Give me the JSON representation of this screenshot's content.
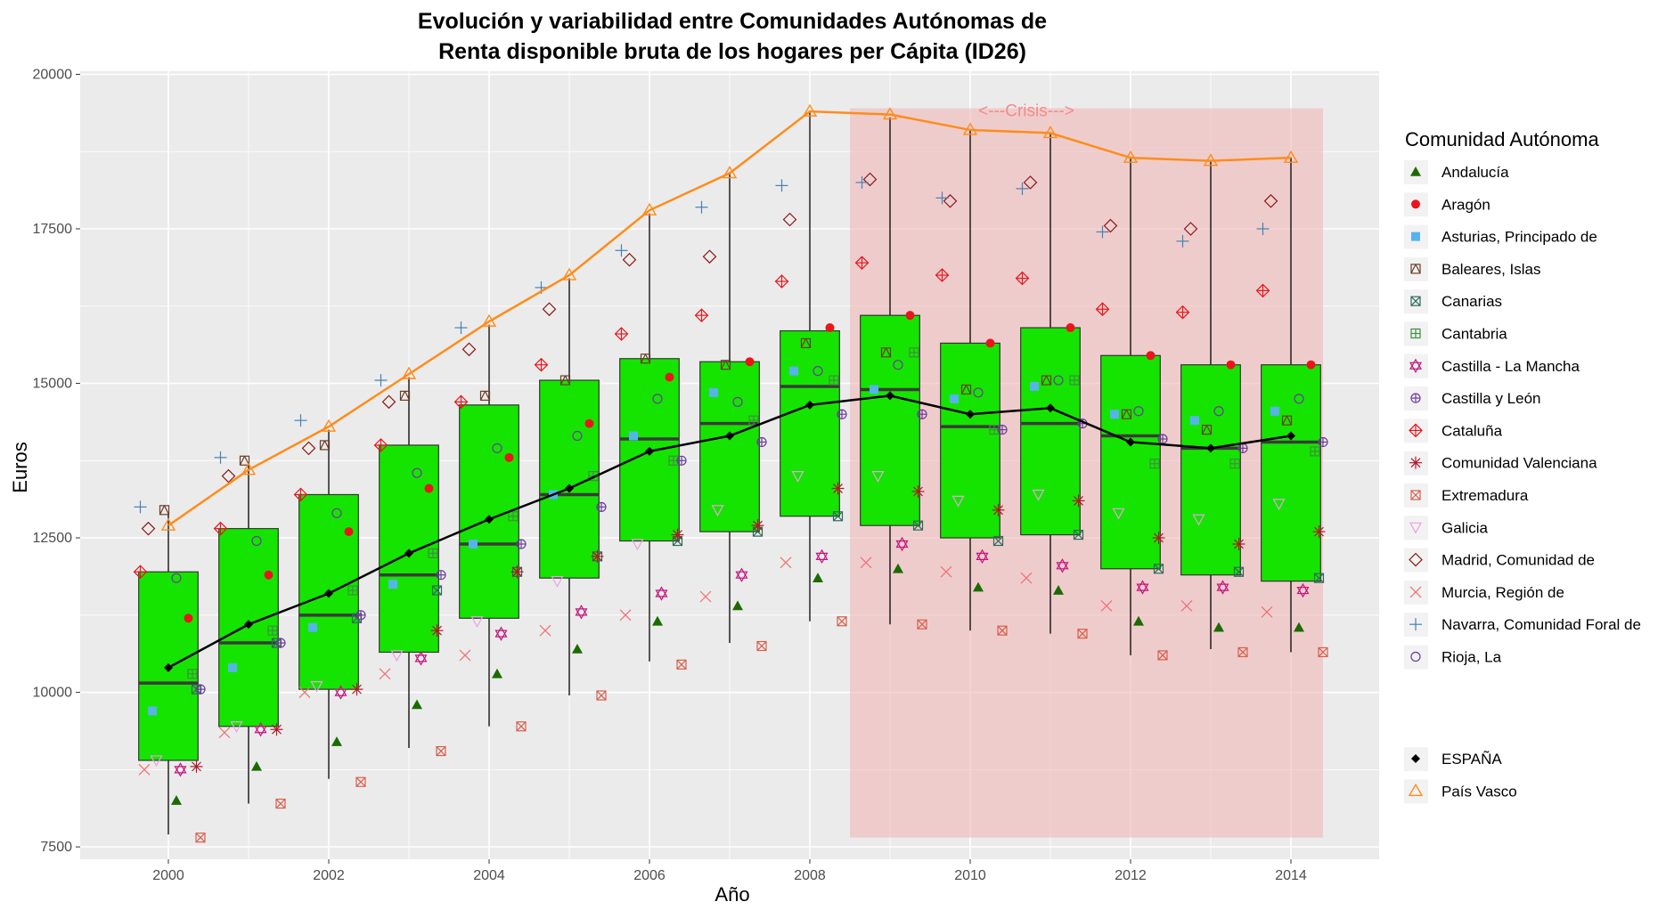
{
  "chart_data": {
    "type": "box",
    "title_line1": "Evolución y variabilidad entre Comunidades Autónomas de",
    "title_line2": "Renta disponible bruta de los hogares per Cápita (ID26)",
    "xlabel": "Año",
    "ylabel": "Euros",
    "xlim": [
      1998.9,
      2015.1
    ],
    "ylim": [
      7300,
      20050
    ],
    "x_ticks": [
      2000,
      2002,
      2004,
      2006,
      2008,
      2010,
      2012,
      2014
    ],
    "y_ticks": [
      7500,
      10000,
      12500,
      15000,
      17500,
      20000
    ],
    "y_tick_labels": [
      "7500",
      "10000",
      "12500",
      "15000",
      "17500",
      "20000"
    ],
    "x_tick_labels": [
      "2000",
      "2002",
      "2004",
      "2006",
      "2008",
      "2010",
      "2012",
      "2014"
    ],
    "grid": true,
    "panel_background": "#ebebeb",
    "crisis": {
      "label": "<---Crisis--->",
      "x_from": 2008.5,
      "x_to": 2014.4,
      "y_from": 7650,
      "y_to": 19450,
      "color": "#f2b8b8"
    },
    "box_color": "#15e400",
    "boxes": [
      {
        "year": 2000,
        "min": 7700,
        "q1": 8900,
        "median": 10150,
        "q3": 11950,
        "max": 12900
      },
      {
        "year": 2001,
        "min": 8200,
        "q1": 9450,
        "median": 10800,
        "q3": 12650,
        "max": 13700
      },
      {
        "year": 2002,
        "min": 8600,
        "q1": 10050,
        "median": 11250,
        "q3": 13200,
        "max": 14250
      },
      {
        "year": 2003,
        "min": 9100,
        "q1": 10650,
        "median": 11900,
        "q3": 14000,
        "max": 15100
      },
      {
        "year": 2004,
        "min": 9450,
        "q1": 11200,
        "median": 12400,
        "q3": 14650,
        "max": 15950
      },
      {
        "year": 2005,
        "min": 9950,
        "q1": 11850,
        "median": 13200,
        "q3": 15050,
        "max": 16700
      },
      {
        "year": 2006,
        "min": 10500,
        "q1": 12450,
        "median": 14100,
        "q3": 15400,
        "max": 17750
      },
      {
        "year": 2007,
        "min": 10800,
        "q1": 12600,
        "median": 14350,
        "q3": 15350,
        "max": 18400
      },
      {
        "year": 2008,
        "min": 11150,
        "q1": 12850,
        "median": 14950,
        "q3": 15850,
        "max": 19400
      },
      {
        "year": 2009,
        "min": 11100,
        "q1": 12700,
        "median": 14900,
        "q3": 16100,
        "max": 19300
      },
      {
        "year": 2010,
        "min": 11000,
        "q1": 12500,
        "median": 14300,
        "q3": 15650,
        "max": 19100
      },
      {
        "year": 2011,
        "min": 10950,
        "q1": 12550,
        "median": 14350,
        "q3": 15900,
        "max": 19050
      },
      {
        "year": 2012,
        "min": 10600,
        "q1": 12000,
        "median": 14150,
        "q3": 15450,
        "max": 18650
      },
      {
        "year": 2013,
        "min": 10700,
        "q1": 11900,
        "median": 13950,
        "q3": 15300,
        "max": 18600
      },
      {
        "year": 2014,
        "min": 10650,
        "q1": 11800,
        "median": 14050,
        "q3": 15300,
        "max": 18650
      }
    ],
    "legend_title": "Comunidad Autónoma",
    "series": [
      {
        "name": "Andalucía",
        "shape": "triangle-filled",
        "color": "#1b6b00",
        "offset": 0.1,
        "values": [
          8250,
          8800,
          9200,
          9800,
          10300,
          10700,
          11150,
          11400,
          11850,
          12000,
          11700,
          11650,
          11150,
          11050,
          11050
        ]
      },
      {
        "name": "Aragón",
        "shape": "circle-filled",
        "color": "#e8161b",
        "offset": 0.25,
        "values": [
          11200,
          11900,
          12600,
          13300,
          13800,
          14350,
          15100,
          15350,
          15900,
          16100,
          15650,
          15900,
          15450,
          15300,
          15300
        ]
      },
      {
        "name": "Asturias, Principado de",
        "shape": "square-filled",
        "color": "#56b4e9",
        "offset": -0.2,
        "values": [
          9700,
          10400,
          11050,
          11750,
          12400,
          13200,
          14150,
          14850,
          15200,
          14900,
          14750,
          14950,
          14500,
          14400,
          14550
        ]
      },
      {
        "name": "Baleares, Islas",
        "shape": "square-cross",
        "color": "#6b3e26",
        "offset": -0.05,
        "values": [
          12950,
          13750,
          14000,
          14800,
          14800,
          15050,
          15400,
          15300,
          15650,
          15500,
          14900,
          15050,
          14500,
          14250,
          14400
        ]
      },
      {
        "name": "Canarias",
        "shape": "x-in-square",
        "color": "#2f6b5b",
        "offset": 0.35,
        "values": [
          10050,
          10800,
          11200,
          11650,
          11950,
          12200,
          12450,
          12600,
          12850,
          12700,
          12450,
          12550,
          12000,
          11950,
          11850
        ]
      },
      {
        "name": "Cantabria",
        "shape": "plus-in-square",
        "color": "#3f8f3f",
        "offset": 0.3,
        "values": [
          10300,
          11000,
          11650,
          12250,
          12850,
          13500,
          13750,
          14400,
          15050,
          15500,
          14250,
          15050,
          13700,
          13700,
          13900
        ]
      },
      {
        "name": "Castilla - La Mancha",
        "shape": "star-david",
        "color": "#c2147e",
        "offset": 0.15,
        "values": [
          8750,
          9400,
          10000,
          10550,
          10950,
          11300,
          11600,
          11900,
          12200,
          12400,
          12200,
          12050,
          11700,
          11700,
          11650
        ]
      },
      {
        "name": "Castilla y León",
        "shape": "plus-in-circle",
        "color": "#6a3d9a",
        "offset": 0.4,
        "values": [
          10050,
          10800,
          11250,
          11900,
          12400,
          13000,
          13750,
          14050,
          14500,
          14500,
          14250,
          14350,
          14100,
          13950,
          14050
        ]
      },
      {
        "name": "Cataluña",
        "shape": "plus-in-diamond",
        "color": "#e8161b",
        "offset": -0.35,
        "values": [
          11950,
          12650,
          13200,
          14000,
          14700,
          15300,
          15800,
          16100,
          16650,
          16950,
          16750,
          16700,
          16200,
          16150,
          16500
        ]
      },
      {
        "name": "Comunidad Valenciana",
        "shape": "asterisk",
        "color": "#b2182b",
        "offset": 0.35,
        "values": [
          8800,
          9400,
          10050,
          11000,
          11950,
          12200,
          12550,
          12700,
          13300,
          13250,
          12950,
          13100,
          12500,
          12400,
          12600
        ]
      },
      {
        "name": "Extremadura",
        "shape": "x-in-square",
        "color": "#d6604d",
        "offset": 0.4,
        "values": [
          7650,
          8200,
          8550,
          9050,
          9450,
          9950,
          10450,
          10750,
          11150,
          11100,
          11000,
          10950,
          10600,
          10650,
          10650
        ]
      },
      {
        "name": "Galicia",
        "shape": "triangle-down",
        "color": "#e7a2e0",
        "offset": -0.15,
        "values": [
          8900,
          9450,
          10100,
          10600,
          11150,
          11800,
          12400,
          12950,
          13500,
          13500,
          13100,
          13200,
          12900,
          12800,
          13050
        ]
      },
      {
        "name": "Madrid, Comunidad de",
        "shape": "diamond-open",
        "color": "#8b1a1a",
        "offset": -0.25,
        "values": [
          12650,
          13500,
          13950,
          14700,
          15550,
          16200,
          17000,
          17050,
          17650,
          18300,
          17950,
          18250,
          17550,
          17500,
          17950
        ]
      },
      {
        "name": "Murcia, Región de",
        "shape": "x",
        "color": "#f07070",
        "offset": -0.3,
        "values": [
          8750,
          9350,
          10000,
          10300,
          10600,
          11000,
          11250,
          11550,
          12100,
          12100,
          11950,
          11850,
          11400,
          11400,
          11300
        ]
      },
      {
        "name": "Navarra, Comunidad Foral de",
        "shape": "plus",
        "color": "#4682b4",
        "offset": -0.35,
        "values": [
          13000,
          13800,
          14400,
          15050,
          15900,
          16550,
          17150,
          17850,
          18200,
          18250,
          18000,
          18150,
          17450,
          17300,
          17500
        ]
      },
      {
        "name": "Rioja, La",
        "shape": "circle-open",
        "color": "#6a3d9a",
        "offset": 0.1,
        "values": [
          11850,
          12450,
          12900,
          13550,
          13950,
          14150,
          14750,
          14700,
          15200,
          15300,
          14850,
          15050,
          14550,
          14550,
          14750
        ]
      }
    ],
    "espana": {
      "name": "ESPAÑA",
      "color": "#000000",
      "values": [
        10400,
        11100,
        11600,
        12250,
        12800,
        13300,
        13900,
        14150,
        14650,
        14800,
        14500,
        14600,
        14050,
        13950,
        14150
      ]
    },
    "pais_vasco": {
      "name": "País Vasco",
      "color": "#ff8c1a",
      "values": [
        12700,
        13600,
        14300,
        15150,
        16000,
        16750,
        17800,
        18400,
        19400,
        19350,
        19100,
        19050,
        18650,
        18600,
        18650
      ]
    }
  }
}
